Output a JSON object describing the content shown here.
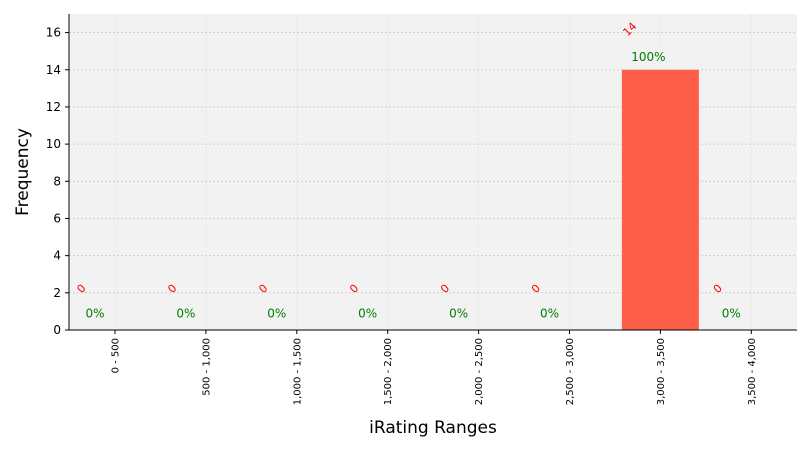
{
  "chart_data": {
    "type": "bar",
    "categories": [
      "0 - 500",
      "500 - 1,000",
      "1,000 - 1,500",
      "1,500 - 2,000",
      "2,000 - 2,500",
      "2,500 - 3,000",
      "3,000 - 3,500",
      "3,500 - 4,000"
    ],
    "values": [
      0,
      0,
      0,
      0,
      0,
      0,
      14,
      0
    ],
    "count_labels": [
      "0",
      "0",
      "0",
      "0",
      "0",
      "0",
      "14",
      "0"
    ],
    "percent_labels": [
      "0%",
      "0%",
      "0%",
      "0%",
      "0%",
      "0%",
      "100%",
      "0%"
    ],
    "xlabel": "iRating Ranges",
    "ylabel": "Frequency",
    "ylim": [
      0,
      17
    ],
    "yticks": [
      0,
      2,
      4,
      6,
      8,
      10,
      12,
      14,
      16
    ],
    "grid": true,
    "colors": {
      "bar": "#ff5e48",
      "plot_background": "#f2f2f2",
      "grid": "#c8c8c8",
      "count_label": "#ff0000",
      "percent_label": "#008000"
    }
  }
}
